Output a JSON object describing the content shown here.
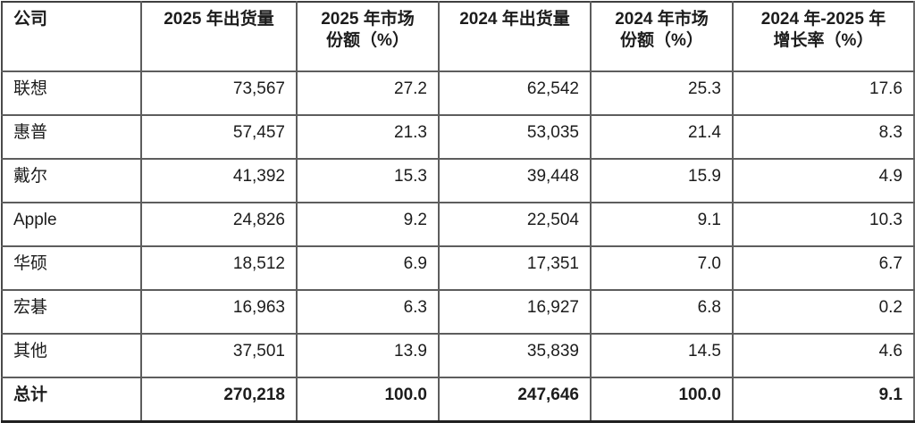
{
  "table": {
    "headers": [
      {
        "id": "company",
        "label": "公司"
      },
      {
        "id": "shipments-2025",
        "label": "2025 年出货量"
      },
      {
        "id": "share-2025",
        "label": "2025 年市场\n份额（%）"
      },
      {
        "id": "shipments-2024",
        "label": "2024 年出货量"
      },
      {
        "id": "share-2024",
        "label": "2024 年市场\n份额（%）"
      },
      {
        "id": "growth",
        "label": "2024 年-2025 年\n增长率（%）"
      }
    ],
    "rows": [
      {
        "cells": [
          "联想",
          "73,567",
          "27.2",
          "62,542",
          "25.3",
          "17.6"
        ],
        "total": false
      },
      {
        "cells": [
          "惠普",
          "57,457",
          "21.3",
          "53,035",
          "21.4",
          "8.3"
        ],
        "total": false
      },
      {
        "cells": [
          "戴尔",
          "41,392",
          "15.3",
          "39,448",
          "15.9",
          "4.9"
        ],
        "total": false
      },
      {
        "cells": [
          "Apple",
          "24,826",
          "9.2",
          "22,504",
          "9.1",
          "10.3"
        ],
        "total": false
      },
      {
        "cells": [
          "华硕",
          "18,512",
          "6.9",
          "17,351",
          "7.0",
          "6.7"
        ],
        "total": false
      },
      {
        "cells": [
          "宏碁",
          "16,963",
          "6.3",
          "16,927",
          "6.8",
          "0.2"
        ],
        "total": false
      },
      {
        "cells": [
          "其他",
          "37,501",
          "13.9",
          "35,839",
          "14.5",
          "4.6"
        ],
        "total": false
      },
      {
        "cells": [
          "总计",
          "270,218",
          "100.0",
          "247,646",
          "100.0",
          "9.1"
        ],
        "total": true
      }
    ],
    "border_color": "#5d5d5d",
    "text_color": "#1c1c1c",
    "background_color": "#ffffff"
  },
  "chart_data": {
    "type": "table",
    "title": "",
    "columns": [
      "公司",
      "2025 年出货量",
      "2025 年市场份额（%）",
      "2024 年出货量",
      "2024 年市场份额（%）",
      "2024 年-2025 年增长率（%）"
    ],
    "rows": [
      [
        "联想",
        73567,
        27.2,
        62542,
        25.3,
        17.6
      ],
      [
        "惠普",
        57457,
        21.3,
        53035,
        21.4,
        8.3
      ],
      [
        "戴尔",
        41392,
        15.3,
        39448,
        15.9,
        4.9
      ],
      [
        "Apple",
        24826,
        9.2,
        22504,
        9.1,
        10.3
      ],
      [
        "华硕",
        18512,
        6.9,
        17351,
        7.0,
        6.7
      ],
      [
        "宏碁",
        16963,
        6.3,
        16927,
        6.8,
        0.2
      ],
      [
        "其他",
        37501,
        13.9,
        35839,
        14.5,
        4.6
      ],
      [
        "总计",
        270218,
        100.0,
        247646,
        100.0,
        9.1
      ]
    ]
  }
}
